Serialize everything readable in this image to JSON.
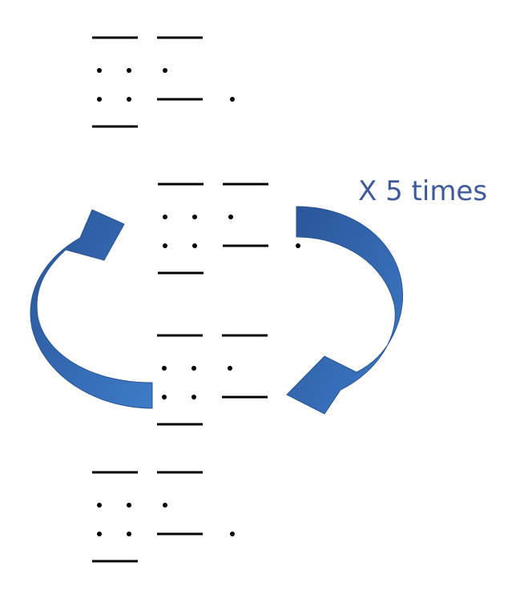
{
  "annotation": "X 5 times"
}
